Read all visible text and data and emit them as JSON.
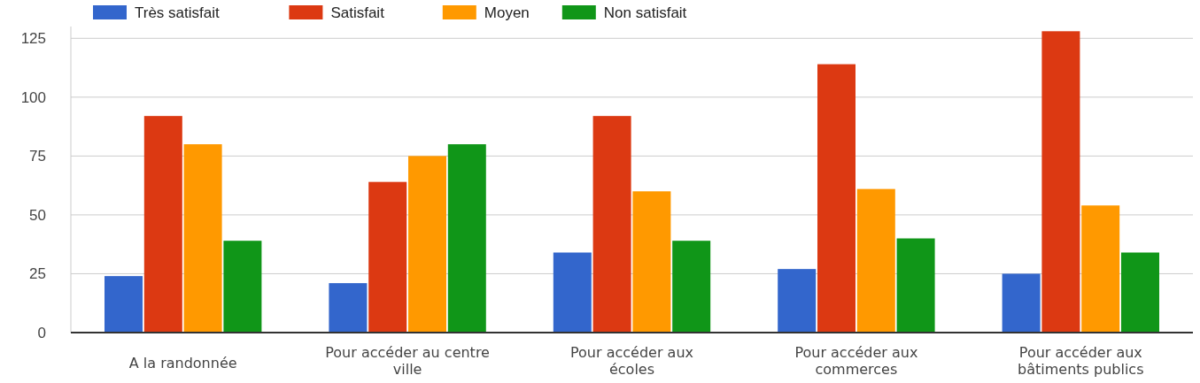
{
  "chart_data": {
    "type": "bar",
    "categories": [
      "A la randonnée",
      "Pour accéder au centre ville",
      "Pour accéder aux écoles",
      "Pour accéder aux commerces",
      "Pour accéder aux bâtiments publics"
    ],
    "series": [
      {
        "name": "Très satisfait",
        "color": "#3366cc",
        "values": [
          24,
          21,
          34,
          27,
          25
        ]
      },
      {
        "name": "Satisfait",
        "color": "#dc3912",
        "values": [
          92,
          64,
          92,
          114,
          128
        ]
      },
      {
        "name": "Moyen",
        "color": "#ff9900",
        "values": [
          80,
          75,
          60,
          61,
          54
        ]
      },
      {
        "name": "Non satisfait",
        "color": "#109618",
        "values": [
          39,
          80,
          39,
          40,
          34
        ]
      }
    ],
    "ylim": [
      0,
      130
    ],
    "yticks": [
      0,
      25,
      50,
      75,
      100,
      125
    ],
    "grid": "y",
    "legend": "top left"
  }
}
